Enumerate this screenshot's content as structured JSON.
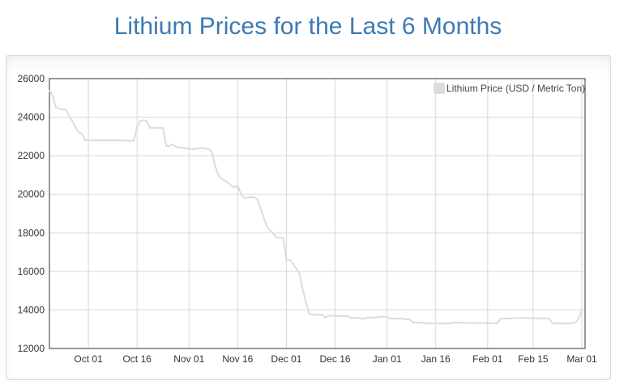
{
  "title": "Lithium Prices for the Last 6 Months",
  "chart_data": {
    "type": "line",
    "title": "Lithium Prices for the Last 6 Months",
    "xlabel": "",
    "ylabel": "",
    "ylim": [
      12000,
      26000
    ],
    "yticks": [
      26000,
      24000,
      22000,
      20000,
      18000,
      16000,
      14000,
      12000
    ],
    "xlim": [
      "2023-09-19",
      "2024-03-02"
    ],
    "xticks": [
      {
        "date": "2023-10-01",
        "label": "Oct 01"
      },
      {
        "date": "2023-10-16",
        "label": "Oct 16"
      },
      {
        "date": "2023-11-01",
        "label": "Nov 01"
      },
      {
        "date": "2023-11-16",
        "label": "Nov 16"
      },
      {
        "date": "2023-12-01",
        "label": "Dec 01"
      },
      {
        "date": "2023-12-16",
        "label": "Dec 16"
      },
      {
        "date": "2024-01-01",
        "label": "Jan 01"
      },
      {
        "date": "2024-01-16",
        "label": "Jan 16"
      },
      {
        "date": "2024-02-01",
        "label": "Feb 01"
      },
      {
        "date": "2024-02-15",
        "label": "Feb 15"
      },
      {
        "date": "2024-03-01",
        "label": "Mar 01"
      }
    ],
    "grid": true,
    "legend_position": "top-right",
    "series": [
      {
        "name": "Lithium Price (USD / Metric Ton)",
        "color": "#dcdcdc",
        "points": [
          [
            "2023-09-19",
            25400
          ],
          [
            "2023-09-20",
            25100
          ],
          [
            "2023-09-21",
            24500
          ],
          [
            "2023-09-22",
            24450
          ],
          [
            "2023-09-23",
            24400
          ],
          [
            "2023-09-24",
            24400
          ],
          [
            "2023-09-25",
            24100
          ],
          [
            "2023-09-26",
            23800
          ],
          [
            "2023-09-27",
            23500
          ],
          [
            "2023-09-28",
            23200
          ],
          [
            "2023-09-29",
            23150
          ],
          [
            "2023-09-30",
            22800
          ],
          [
            "2023-10-02",
            22800
          ],
          [
            "2023-10-05",
            22800
          ],
          [
            "2023-10-08",
            22800
          ],
          [
            "2023-10-11",
            22800
          ],
          [
            "2023-10-14",
            22780
          ],
          [
            "2023-10-15",
            22780
          ],
          [
            "2023-10-16",
            23500
          ],
          [
            "2023-10-17",
            23800
          ],
          [
            "2023-10-18",
            23850
          ],
          [
            "2023-10-19",
            23800
          ],
          [
            "2023-10-20",
            23450
          ],
          [
            "2023-10-21",
            23450
          ],
          [
            "2023-10-24",
            23450
          ],
          [
            "2023-10-25",
            22500
          ],
          [
            "2023-10-26",
            22500
          ],
          [
            "2023-10-27",
            22600
          ],
          [
            "2023-10-28",
            22450
          ],
          [
            "2023-10-30",
            22400
          ],
          [
            "2023-11-01",
            22350
          ],
          [
            "2023-11-03",
            22350
          ],
          [
            "2023-11-05",
            22400
          ],
          [
            "2023-11-07",
            22350
          ],
          [
            "2023-11-08",
            22200
          ],
          [
            "2023-11-09",
            21500
          ],
          [
            "2023-11-10",
            21000
          ],
          [
            "2023-11-11",
            20800
          ],
          [
            "2023-11-13",
            20600
          ],
          [
            "2023-11-14",
            20450
          ],
          [
            "2023-11-15",
            20350
          ],
          [
            "2023-11-16",
            20450
          ],
          [
            "2023-11-17",
            20000
          ],
          [
            "2023-11-18",
            19800
          ],
          [
            "2023-11-20",
            19850
          ],
          [
            "2023-11-21",
            19850
          ],
          [
            "2023-11-22",
            19750
          ],
          [
            "2023-11-23",
            19300
          ],
          [
            "2023-11-24",
            18800
          ],
          [
            "2023-11-25",
            18300
          ],
          [
            "2023-11-27",
            17950
          ],
          [
            "2023-11-28",
            17750
          ],
          [
            "2023-11-30",
            17750
          ],
          [
            "2023-12-01",
            16600
          ],
          [
            "2023-12-02",
            16600
          ],
          [
            "2023-12-03",
            16400
          ],
          [
            "2023-12-05",
            15900
          ],
          [
            "2023-12-06",
            15100
          ],
          [
            "2023-12-07",
            14400
          ],
          [
            "2023-12-08",
            13800
          ],
          [
            "2023-12-10",
            13750
          ],
          [
            "2023-12-12",
            13750
          ],
          [
            "2023-12-13",
            13600
          ],
          [
            "2023-12-14",
            13700
          ],
          [
            "2023-12-16",
            13700
          ],
          [
            "2023-12-18",
            13680
          ],
          [
            "2023-12-20",
            13680
          ],
          [
            "2023-12-21",
            13580
          ],
          [
            "2023-12-23",
            13600
          ],
          [
            "2023-12-24",
            13550
          ],
          [
            "2023-12-25",
            13550
          ],
          [
            "2023-12-26",
            13600
          ],
          [
            "2023-12-28",
            13600
          ],
          [
            "2023-12-30",
            13650
          ],
          [
            "2024-01-01",
            13650
          ],
          [
            "2024-01-02",
            13550
          ],
          [
            "2024-01-05",
            13550
          ],
          [
            "2024-01-08",
            13500
          ],
          [
            "2024-01-09",
            13350
          ],
          [
            "2024-01-10",
            13350
          ],
          [
            "2024-01-12",
            13330
          ],
          [
            "2024-01-14",
            13300
          ],
          [
            "2024-01-16",
            13300
          ],
          [
            "2024-01-20",
            13300
          ],
          [
            "2024-01-22",
            13350
          ],
          [
            "2024-01-25",
            13330
          ],
          [
            "2024-01-28",
            13320
          ],
          [
            "2024-02-01",
            13320
          ],
          [
            "2024-02-04",
            13300
          ],
          [
            "2024-02-05",
            13550
          ],
          [
            "2024-02-07",
            13550
          ],
          [
            "2024-02-10",
            13580
          ],
          [
            "2024-02-13",
            13580
          ],
          [
            "2024-02-16",
            13570
          ],
          [
            "2024-02-20",
            13560
          ],
          [
            "2024-02-21",
            13300
          ],
          [
            "2024-02-23",
            13300
          ],
          [
            "2024-02-26",
            13300
          ],
          [
            "2024-02-28",
            13330
          ],
          [
            "2024-02-29",
            13550
          ],
          [
            "2024-03-01",
            14000
          ]
        ]
      }
    ]
  }
}
